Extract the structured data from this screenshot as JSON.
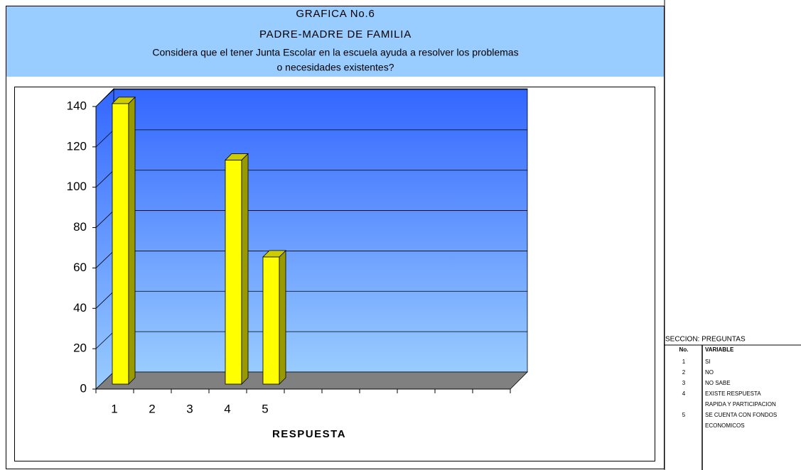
{
  "chart_data": {
    "type": "bar",
    "title": [
      "GRAFICA No.6",
      "PADRE-MADRE DE FAMILIA",
      "Considera que el tener Junta Escolar en la escuela ayuda a resolver los problemas",
      "o necesidades existentes?"
    ],
    "x_label": "RESPUESTA",
    "categories": [
      "1",
      "2",
      "3",
      "4",
      "5",
      null,
      null,
      null,
      null,
      null,
      null
    ],
    "values": [
      139,
      0,
      0,
      111,
      63,
      null,
      null,
      null,
      null,
      null,
      null
    ],
    "color": "#ffff00",
    "ylim": [
      0,
      140
    ],
    "yticks": [
      0,
      20,
      40,
      60,
      80,
      100,
      120,
      140
    ],
    "grid": true
  },
  "legend_table": {
    "title": "SECCION:  PREGUNTAS",
    "header": [
      "No.",
      "VARIABLE"
    ],
    "rows": [
      {
        "no": "1",
        "variable": [
          "SI"
        ]
      },
      {
        "no": "2",
        "variable": [
          "NO"
        ]
      },
      {
        "no": "3",
        "variable": [
          "NO SABE"
        ]
      },
      {
        "no": "4",
        "variable": [
          "EXISTE RESPUESTA",
          "RAPIDA Y PARTICIPACION"
        ]
      },
      {
        "no": "5",
        "variable": [
          "SE CUENTA CON FONDOS",
          "ECONOMICOS"
        ]
      }
    ]
  }
}
